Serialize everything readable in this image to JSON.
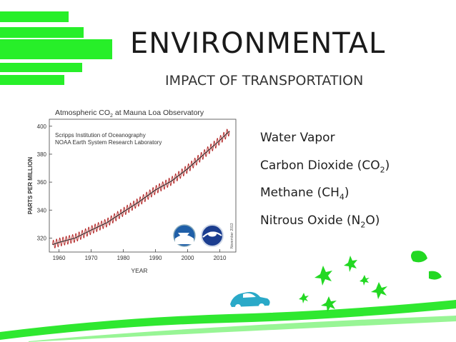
{
  "slide": {
    "title": "ENVIRONMENTAL",
    "subtitle": "IMPACT OF TRANSPORTATION",
    "accent_color": "#27ef29"
  },
  "gases": [
    {
      "text": "Water Vapor",
      "formula_prefix": "",
      "formula_sub": "",
      "formula_suffix": ""
    },
    {
      "text": "Carbon Dioxide (CO",
      "formula_sub": "2",
      "formula_suffix": ")"
    },
    {
      "text": "Methane (CH",
      "formula_sub": "4",
      "formula_suffix": ")"
    },
    {
      "text": "Nitrous Oxide (N",
      "formula_sub": "2",
      "formula_suffix": "O)"
    }
  ],
  "chart_data": {
    "type": "line",
    "title_prefix": "Atmospheric CO",
    "title_sub": "2",
    "title_suffix": " at Mauna Loa Observatory",
    "source_lines": [
      "Scripps Institution of Oceanography",
      "NOAA Earth System Research Laboratory"
    ],
    "ylabel": "PARTS PER MILLION",
    "xlabel": "YEAR",
    "ylim": [
      310,
      405
    ],
    "xlim": [
      1957,
      2015
    ],
    "yticks": [
      320,
      340,
      360,
      380,
      400
    ],
    "xticks": [
      1960,
      1970,
      1980,
      1990,
      2000,
      2010
    ],
    "side_note": "November 2013",
    "series": [
      {
        "color": "#b02020",
        "x": [
          1958,
          1960,
          1965,
          1970,
          1975,
          1980,
          1985,
          1990,
          1995,
          2000,
          2005,
          2010,
          2013
        ],
        "values": [
          315.3,
          316.9,
          320.0,
          325.7,
          331.1,
          338.7,
          346.1,
          354.4,
          360.8,
          369.6,
          379.8,
          389.9,
          396.5
        ]
      }
    ],
    "grid": false
  }
}
